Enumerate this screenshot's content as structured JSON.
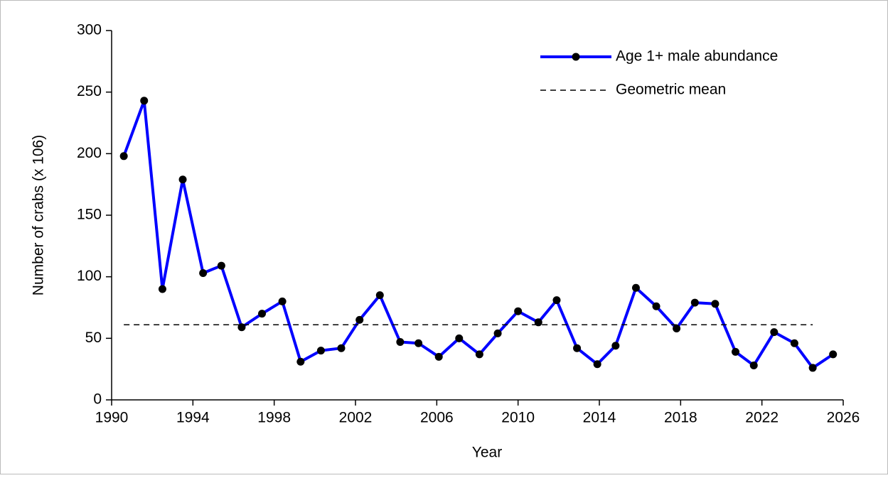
{
  "chart_data": {
    "type": "line",
    "x_label": "Year",
    "y_label": "Number of crabs (x 106)",
    "xlim": [
      1990,
      2026
    ],
    "xticks": [
      1990,
      1994,
      1998,
      2002,
      2006,
      2010,
      2014,
      2018,
      2022,
      2026
    ],
    "ylim": [
      0,
      300
    ],
    "yticks": [
      0,
      50,
      100,
      150,
      200,
      250,
      300
    ],
    "legend": "upper right",
    "series": [
      {
        "name": "Age 1+ male abundance",
        "color": "#0000ff",
        "marker": true,
        "x": [
          1990.6,
          1991.6,
          1992.5,
          1993.5,
          1994.5,
          1995.4,
          1996.4,
          1997.4,
          1998.4,
          1999.3,
          2000.3,
          2001.3,
          2002.2,
          2003.2,
          2004.2,
          2005.1,
          2006.1,
          2007.1,
          2008.1,
          2009.0,
          2010.0,
          2011.0,
          2011.9,
          2012.9,
          2013.9,
          2014.8,
          2015.8,
          2016.8,
          2017.8,
          2018.7,
          2019.7,
          2020.7,
          2021.6,
          2022.6,
          2023.6,
          2024.5,
          2025.5
        ],
        "values": [
          198,
          243,
          90,
          179,
          103,
          109,
          59,
          70,
          80,
          31,
          40,
          42,
          65,
          85,
          47,
          46,
          35,
          50,
          37,
          54,
          72,
          63,
          81,
          42,
          29,
          44,
          91,
          76,
          58,
          79,
          78,
          39,
          28,
          55,
          46,
          26,
          37
        ]
      },
      {
        "name": "Geometric mean",
        "color": "#000000",
        "dashed": true,
        "x": [
          1990.6,
          2024.5
        ],
        "values": [
          61,
          61
        ]
      }
    ]
  }
}
